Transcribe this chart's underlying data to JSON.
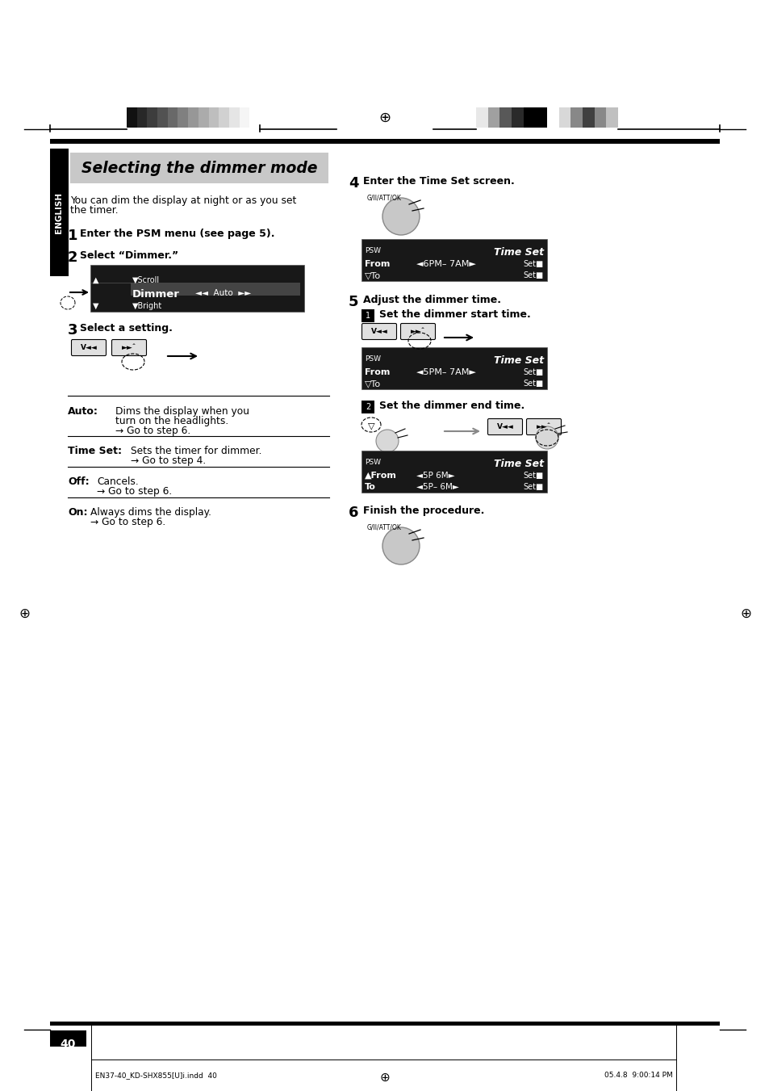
{
  "bg_color": "#ffffff",
  "page_number": "40",
  "footer_left": "EN37-40_KD-SHX855[U]i.indd  40",
  "footer_right": "05.4.8  9:00:14 PM",
  "title": "Selecting the dimmer mode",
  "intro_line1": "You can dim the display at night or as you set",
  "intro_line2": "the timer.",
  "step1": "Enter the PSM menu (see page 5).",
  "step2_title": "Select “Dimmer.”",
  "step3_title": "Select a setting.",
  "step4_title": "Enter the Time Set screen.",
  "step5_title": "Adjust the dimmer time.",
  "step5_1": "Set the dimmer start time.",
  "step5_2": "Set the dimmer end time.",
  "step6_title": "Finish the procedure.",
  "auto_label": "Auto:",
  "auto_text1": "Dims the display when you",
  "auto_text2": "turn on the headlights.",
  "auto_goto": "→ Go to step 6.",
  "timeset_label": "Time Set:",
  "timeset_text": "Sets the timer for dimmer.",
  "timeset_goto": "→ Go to step 4.",
  "off_label": "Off:",
  "off_text": "Cancels.",
  "off_goto": "→ Go to step 6.",
  "on_label": "On:",
  "on_text": "Always dims the display.",
  "on_goto": "→ Go to step 6.",
  "english_text": "ENGLISH",
  "color_bar_left_colors": [
    "#111111",
    "#282828",
    "#3d3d3d",
    "#525252",
    "#696969",
    "#808080",
    "#979797",
    "#ababab",
    "#bebebe",
    "#d1d1d1",
    "#e5e5e5",
    "#f5f5f5",
    "#ffffff"
  ],
  "color_bar_right_colors": [
    "#e8e8e8",
    "#a0a0a0",
    "#585858",
    "#2a2a2a",
    "#000000",
    "#000000",
    "#ffffff",
    "#d8d8d8",
    "#888888",
    "#404040",
    "#888888",
    "#c0c0c0"
  ],
  "crosshair": "⊕"
}
